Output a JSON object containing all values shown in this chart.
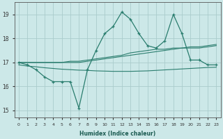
{
  "xlabel": "Humidex (Indice chaleur)",
  "bg_color": "#cce8e8",
  "grid_color": "#aacccc",
  "line_color": "#2a7d6e",
  "xlim": [
    -0.5,
    23.5
  ],
  "ylim": [
    14.7,
    19.5
  ],
  "yticks": [
    15,
    16,
    17,
    18,
    19
  ],
  "xticks": [
    0,
    1,
    2,
    3,
    4,
    5,
    6,
    7,
    8,
    9,
    10,
    11,
    12,
    13,
    14,
    15,
    16,
    17,
    18,
    19,
    20,
    21,
    22,
    23
  ],
  "series1_x": [
    0,
    1,
    2,
    3,
    4,
    5,
    6,
    7,
    8,
    9,
    10,
    11,
    12,
    13,
    14,
    15,
    16,
    17,
    18,
    19,
    20,
    21,
    22,
    23
  ],
  "series1_y": [
    17.0,
    16.9,
    16.7,
    16.4,
    16.2,
    16.2,
    16.2,
    15.1,
    16.7,
    17.5,
    18.2,
    18.5,
    19.1,
    18.8,
    18.2,
    17.7,
    17.6,
    17.9,
    19.0,
    18.2,
    17.1,
    17.1,
    16.9,
    16.9
  ],
  "series2_x": [
    0,
    1,
    2,
    3,
    4,
    5,
    6,
    7,
    8,
    9,
    10,
    11,
    12,
    13,
    14,
    15,
    16,
    17,
    18,
    19,
    20,
    21,
    22,
    23
  ],
  "series2_y": [
    17.0,
    17.0,
    17.0,
    17.0,
    17.0,
    17.0,
    17.0,
    17.0,
    17.05,
    17.1,
    17.15,
    17.2,
    17.25,
    17.3,
    17.35,
    17.4,
    17.45,
    17.5,
    17.55,
    17.6,
    17.6,
    17.6,
    17.65,
    17.7
  ],
  "series3_x": [
    0,
    1,
    2,
    3,
    4,
    5,
    6,
    7,
    8,
    9,
    10,
    11,
    12,
    13,
    14,
    15,
    16,
    17,
    18,
    19,
    20,
    21,
    22,
    23
  ],
  "series3_y": [
    17.0,
    17.0,
    17.0,
    17.0,
    17.0,
    17.0,
    17.05,
    17.05,
    17.1,
    17.15,
    17.2,
    17.25,
    17.3,
    17.4,
    17.45,
    17.5,
    17.55,
    17.55,
    17.6,
    17.6,
    17.65,
    17.65,
    17.7,
    17.75
  ],
  "series4_x": [
    0,
    1,
    2,
    3,
    4,
    5,
    6,
    7,
    8,
    9,
    10,
    11,
    12,
    13,
    14,
    15,
    16,
    17,
    18,
    19,
    20,
    21,
    22,
    23
  ],
  "series4_y": [
    16.9,
    16.85,
    16.82,
    16.78,
    16.75,
    16.72,
    16.7,
    16.68,
    16.67,
    16.65,
    16.64,
    16.63,
    16.63,
    16.63,
    16.64,
    16.65,
    16.67,
    16.69,
    16.71,
    16.73,
    16.75,
    16.77,
    16.79,
    16.8
  ]
}
